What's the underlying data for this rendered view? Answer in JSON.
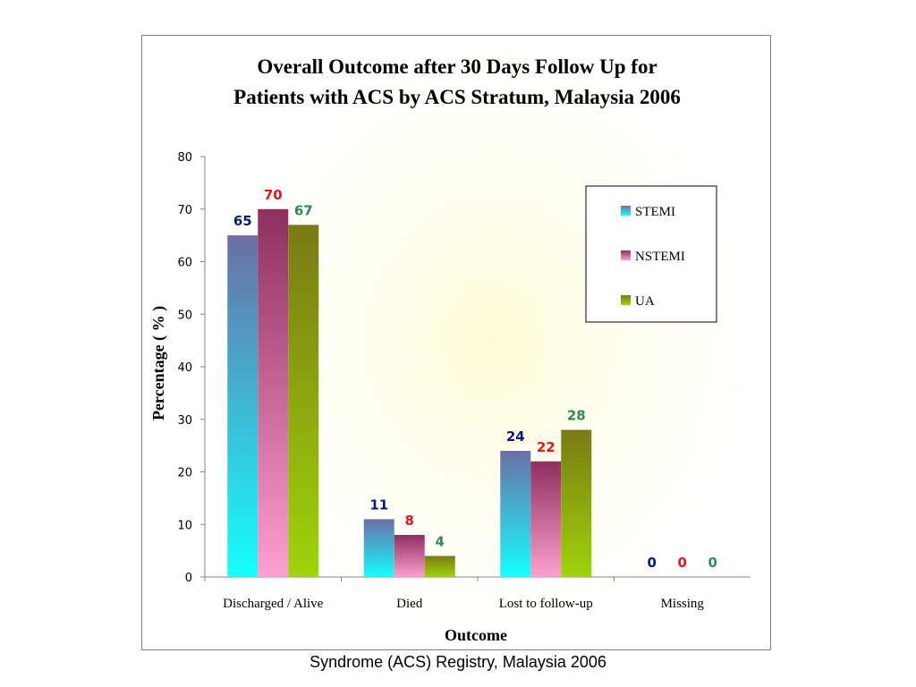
{
  "chart_data": {
    "type": "bar",
    "title": "Overall Outcome after 30 Days Follow Up for Patients with ACS by ACS Stratum, Malaysia 2006",
    "title_lines": [
      "Overall Outcome after 30 Days Follow Up for",
      "Patients with ACS by ACS Stratum, Malaysia 2006"
    ],
    "xlabel": "Outcome",
    "ylabel": "Percentage ( % )",
    "categories": [
      "Discharged / Alive",
      "Died",
      "Lost to follow-up",
      "Missing"
    ],
    "series": [
      {
        "name": "STEMI",
        "values": [
          65,
          11,
          24,
          0
        ],
        "color_top": "#6b6fa6",
        "color_bottom": "#14ffff",
        "label_color": "#0a1a7a"
      },
      {
        "name": "NSTEMI",
        "values": [
          70,
          8,
          22,
          0
        ],
        "color_top": "#8e2f5e",
        "color_bottom": "#ff9fd0",
        "label_color": "#e8141c"
      },
      {
        "name": "UA",
        "values": [
          67,
          4,
          28,
          0
        ],
        "color_top": "#7a7a14",
        "color_bottom": "#9ed40a",
        "label_color": "#2e8b57"
      }
    ],
    "ylim": [
      0,
      80
    ],
    "yticks": [
      0,
      10,
      20,
      30,
      40,
      50,
      60,
      70,
      80
    ],
    "grid": false,
    "legend_position": "top-right",
    "data_labels": true
  },
  "caption": "Syndrome (ACS) Registry, Malaysia 2006"
}
